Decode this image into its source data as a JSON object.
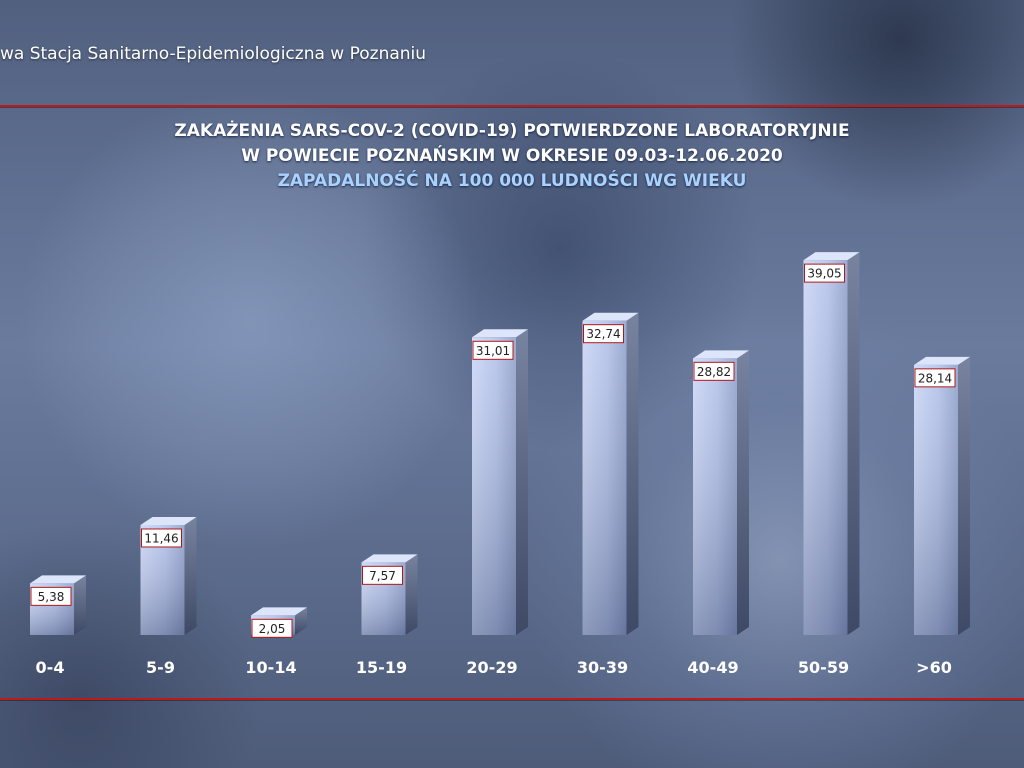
{
  "header": {
    "organization": "wa Stacja Sanitarno-Epidemiologiczna w Poznaniu"
  },
  "colors": {
    "rule": "#c41717",
    "bar_light": "#b9c7ee",
    "bar_dark": "#4a5678",
    "subtitle": "#a9d2ff"
  },
  "chart_data": {
    "type": "bar",
    "title_lines": [
      "ZAKAŻENIA SARS-COV-2 (COVID-19) POTWIERDZONE LABORATORYJNIE",
      "W POWIECIE POZNAŃSKIM W OKRESIE 09.03-12.06.2020"
    ],
    "subtitle": "ZAPADALNOŚĆ NA 100 000 LUDNOŚCI WG WIEKU",
    "categories": [
      "0-4",
      "5-9",
      "10-14",
      "15-19",
      "20-29",
      "30-39",
      "40-49",
      "50-59",
      ">60"
    ],
    "values": [
      5.38,
      11.46,
      2.05,
      7.57,
      31.01,
      32.74,
      28.82,
      39.05,
      28.14
    ],
    "value_labels": [
      "5,38",
      "11,46",
      "2,05",
      "7,57",
      "31,01",
      "32,74",
      "28,82",
      "39,05",
      "28,14"
    ],
    "xlabel": "",
    "ylabel": "",
    "ylim": [
      0,
      40
    ],
    "grid": false,
    "legend": "none"
  }
}
